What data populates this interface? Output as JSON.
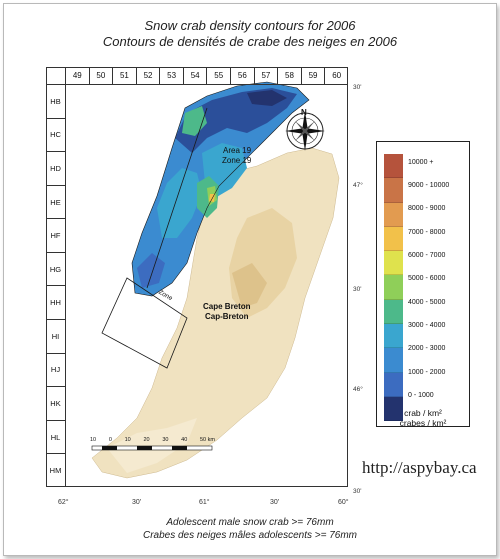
{
  "title": {
    "en": "Snow crab density contours for 2006",
    "fr": "Contours de densités de crabe des neiges en 2006"
  },
  "grid": {
    "columns": [
      "49",
      "50",
      "51",
      "52",
      "53",
      "54",
      "55",
      "56",
      "57",
      "58",
      "59",
      "60"
    ],
    "rows": [
      "HB",
      "HC",
      "HD",
      "HE",
      "HF",
      "HG",
      "HH",
      "HI",
      "HJ",
      "HK",
      "HL",
      "HM"
    ]
  },
  "map_labels": {
    "area": "Area 19",
    "zone": "Zone 19",
    "cape_breton_en": "Cape Breton",
    "cape_breton_fr": "Cap-Breton",
    "small_zone": "Zone",
    "north": "N"
  },
  "scale_bar": {
    "ticks": [
      "10",
      "0",
      "10",
      "20",
      "30",
      "40",
      "50 km"
    ]
  },
  "longitudes": [
    "62°",
    "30'",
    "61°",
    "30'",
    "60°"
  ],
  "latitudes": [
    "30'",
    "47°",
    "30'",
    "46°",
    "30'"
  ],
  "legend": {
    "classes": [
      {
        "label": "10000 +",
        "color": "#b5533c"
      },
      {
        "label": "9000 - 10000",
        "color": "#c97447"
      },
      {
        "label": "8000 - 9000",
        "color": "#e29b50"
      },
      {
        "label": "7000 - 8000",
        "color": "#f2c14a"
      },
      {
        "label": "6000 - 7000",
        "color": "#dfe24d"
      },
      {
        "label": "5000 - 6000",
        "color": "#8fcf59"
      },
      {
        "label": "4000 - 5000",
        "color": "#4db98a"
      },
      {
        "label": "3000 - 4000",
        "color": "#3aa6cf"
      },
      {
        "label": "2000 - 3000",
        "color": "#3b8bd0"
      },
      {
        "label": "1000 - 2000",
        "color": "#3c6cc0"
      },
      {
        "label": "0 - 1000",
        "color": "#23336e"
      }
    ],
    "unit_en": "crab / km²",
    "unit_fr": "crabes / km²"
  },
  "footer": {
    "en": "Adolescent male snow crab >= 76mm",
    "fr": "Crabes des neiges mâles adolescents >= 76mm"
  },
  "watermark": "http://aspybay.ca"
}
